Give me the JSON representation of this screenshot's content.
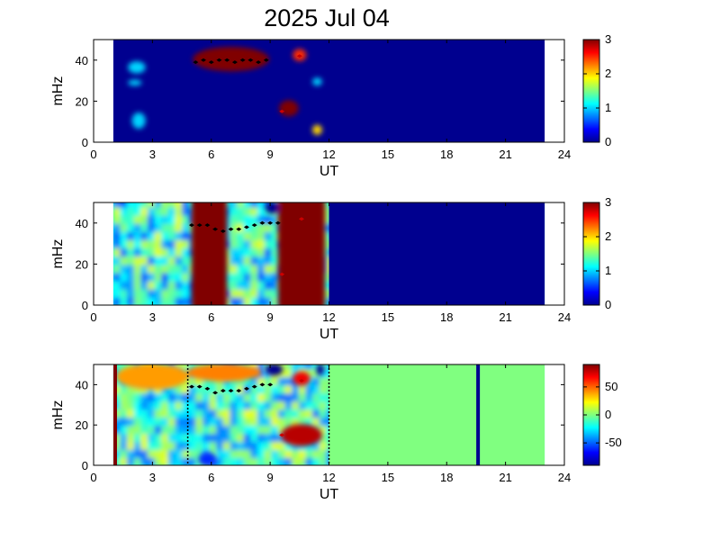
{
  "figure": {
    "title": "2025 Jul 04"
  },
  "chart_data": [
    {
      "type": "heatmap",
      "panel": "top",
      "title": "",
      "xlabel": "UT",
      "ylabel": "mHz",
      "xlim": [
        0,
        24
      ],
      "ylim": [
        0,
        50
      ],
      "xticks": [
        "0",
        "3",
        "6",
        "9",
        "12",
        "15",
        "18",
        "21",
        "24"
      ],
      "yticks": [
        "0",
        "20",
        "40"
      ],
      "data_x_range": [
        1,
        23
      ],
      "colorbar": {
        "min": 0,
        "max": 3,
        "ticks": [
          "0",
          "1",
          "2",
          "3"
        ]
      },
      "background_value": 0,
      "features": [
        {
          "t_start": 5.1,
          "t_end": 8.9,
          "f_low": 35,
          "f_high": 46,
          "value": 3
        },
        {
          "t_start": 9.5,
          "t_end": 10.4,
          "f_low": 13,
          "f_high": 20,
          "value": 3
        },
        {
          "t_start": 10.2,
          "t_end": 10.8,
          "f_low": 40,
          "f_high": 45,
          "value": 2.5
        },
        {
          "t_start": 11.2,
          "t_end": 11.6,
          "f_low": 4,
          "f_high": 8,
          "value": 2
        },
        {
          "t_start": 1.8,
          "t_end": 2.6,
          "f_low": 34,
          "f_high": 39,
          "value": 1
        },
        {
          "t_start": 1.8,
          "t_end": 2.4,
          "f_low": 28,
          "f_high": 30,
          "value": 1
        },
        {
          "t_start": 2.0,
          "t_end": 2.6,
          "f_low": 7,
          "f_high": 14,
          "value": 1
        },
        {
          "t_start": 11.2,
          "t_end": 11.6,
          "f_low": 28,
          "f_high": 31,
          "value": 1
        }
      ],
      "markers": [
        [
          5.2,
          39
        ],
        [
          5.6,
          40
        ],
        [
          6.0,
          39
        ],
        [
          6.4,
          40
        ],
        [
          6.8,
          40
        ],
        [
          7.2,
          39
        ],
        [
          7.6,
          40
        ],
        [
          8.0,
          40
        ],
        [
          8.4,
          39
        ],
        [
          8.8,
          40
        ],
        [
          9.6,
          15
        ],
        [
          10.5,
          42
        ]
      ]
    },
    {
      "type": "heatmap",
      "panel": "middle",
      "title": "",
      "xlabel": "UT",
      "ylabel": "mHz",
      "xlim": [
        0,
        24
      ],
      "ylim": [
        0,
        50
      ],
      "xticks": [
        "0",
        "3",
        "6",
        "9",
        "12",
        "15",
        "18",
        "21",
        "24"
      ],
      "yticks": [
        "0",
        "20",
        "40"
      ],
      "data_x_range": [
        1,
        23
      ],
      "colorbar": {
        "min": 0,
        "max": 3,
        "ticks": [
          "0",
          "1",
          "2",
          "3"
        ]
      },
      "data_end_time": 12,
      "background_value": 1.2,
      "features": [
        {
          "t_start": 5.0,
          "t_end": 6.8,
          "f_low": 0,
          "f_high": 50,
          "value": 3
        },
        {
          "t_start": 9.4,
          "t_end": 11.8,
          "f_low": 0,
          "f_high": 50,
          "value": 3
        },
        {
          "t_start": 8.8,
          "t_end": 9.4,
          "f_low": 45,
          "f_high": 50,
          "value": 0
        }
      ],
      "markers": [
        [
          5.0,
          39
        ],
        [
          5.4,
          39
        ],
        [
          5.8,
          39
        ],
        [
          6.2,
          37
        ],
        [
          6.6,
          36
        ],
        [
          7.0,
          37
        ],
        [
          7.4,
          37
        ],
        [
          7.8,
          38
        ],
        [
          8.2,
          39
        ],
        [
          8.6,
          40
        ],
        [
          9.0,
          40
        ],
        [
          9.4,
          40
        ],
        [
          9.6,
          15
        ],
        [
          10.6,
          42
        ]
      ]
    },
    {
      "type": "heatmap",
      "panel": "bottom",
      "title": "",
      "xlabel": "UT",
      "ylabel": "mHz",
      "xlim": [
        0,
        24
      ],
      "ylim": [
        0,
        50
      ],
      "xticks": [
        "0",
        "3",
        "6",
        "9",
        "12",
        "15",
        "18",
        "21",
        "24"
      ],
      "yticks": [
        "0",
        "20",
        "40"
      ],
      "data_x_range": [
        1,
        23
      ],
      "colorbar": {
        "min": -90,
        "max": 90,
        "ticks": [
          "50",
          "0",
          "-50"
        ],
        "tick_values": [
          50,
          0,
          -50
        ]
      },
      "data_end_time": 12,
      "fill_value_after": 0,
      "dotted_lines": [
        4.8,
        12
      ],
      "vertical_lines": [
        {
          "t": 1.1,
          "value": 90
        },
        {
          "t": 19.6,
          "value": -90
        }
      ],
      "background_value": -15,
      "features": [
        {
          "t_start": 1.2,
          "t_end": 4.8,
          "f_low": 38,
          "f_high": 50,
          "value": 40
        },
        {
          "t_start": 4.8,
          "t_end": 8.5,
          "f_low": 42,
          "f_high": 50,
          "value": 45
        },
        {
          "t_start": 8.8,
          "t_end": 9.6,
          "f_low": 45,
          "f_high": 50,
          "value": -90
        },
        {
          "t_start": 11.4,
          "t_end": 11.7,
          "f_low": 45,
          "f_high": 50,
          "value": -90
        },
        {
          "t_start": 9.6,
          "t_end": 11.6,
          "f_low": 10,
          "f_high": 20,
          "value": 80
        },
        {
          "t_start": 10.2,
          "t_end": 11.0,
          "f_low": 40,
          "f_high": 46,
          "value": 70
        },
        {
          "t_start": 5.4,
          "t_end": 6.2,
          "f_low": 0,
          "f_high": 6,
          "value": -60
        }
      ],
      "markers": [
        [
          5.0,
          39
        ],
        [
          5.4,
          39
        ],
        [
          5.8,
          38
        ],
        [
          6.2,
          36
        ],
        [
          6.6,
          37
        ],
        [
          7.0,
          37
        ],
        [
          7.4,
          37
        ],
        [
          7.8,
          38
        ],
        [
          8.2,
          39
        ],
        [
          8.6,
          40
        ],
        [
          9.0,
          40
        ],
        [
          9.6,
          15
        ],
        [
          10.6,
          42
        ]
      ]
    }
  ]
}
